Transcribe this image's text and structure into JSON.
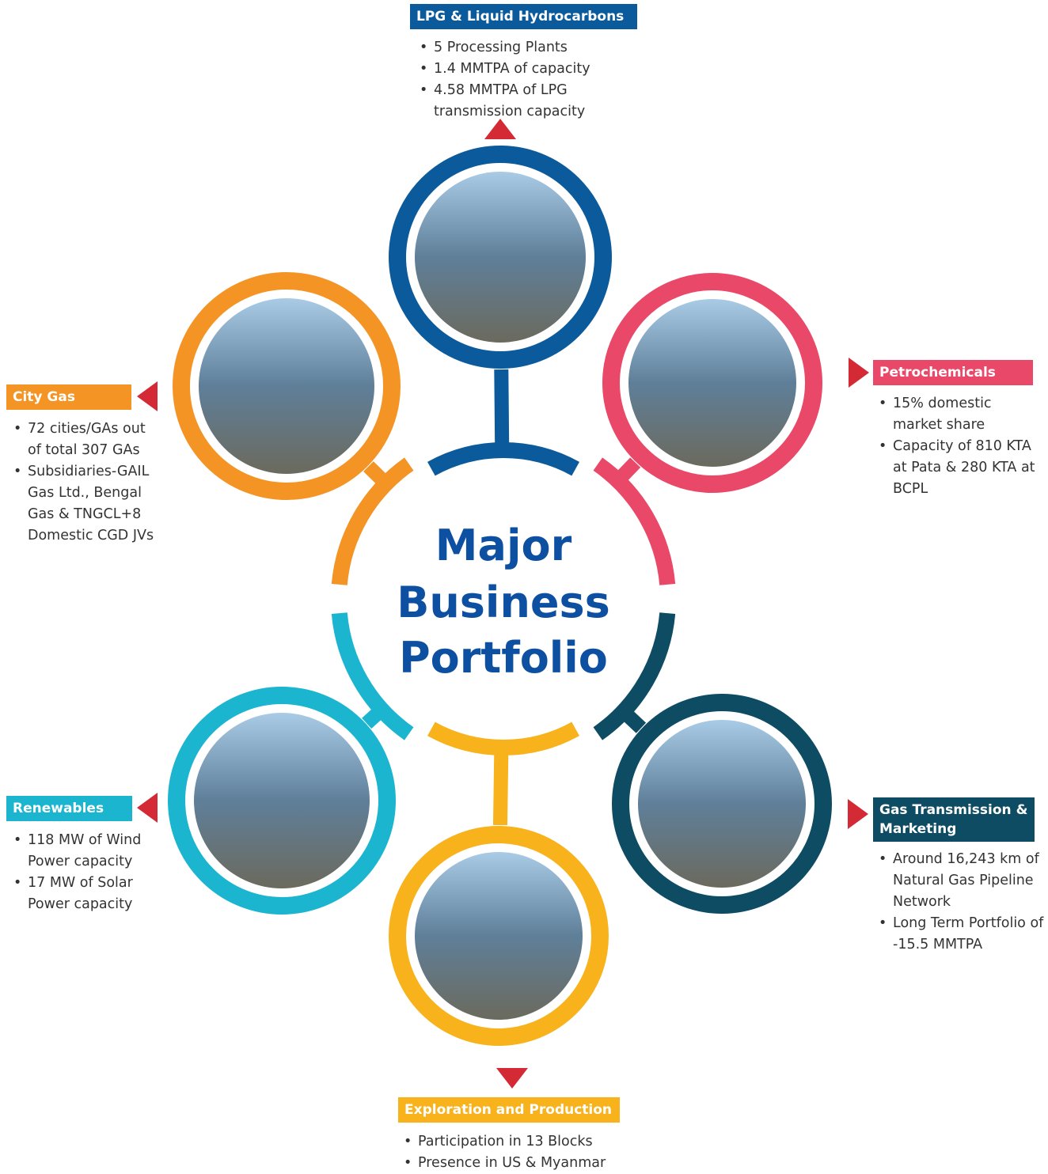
{
  "title": [
    "Major",
    "Business",
    "Portfolio"
  ],
  "segments": [
    {
      "label": "LPG & Liquid Hydrocarbons",
      "color": "#0b5a9c",
      "bullets": [
        "5 Processing Plants",
        "1.4 MMTPA of capacity",
        "4.58 MMTPA of LPG transmission capacity"
      ]
    },
    {
      "label": "Petrochemicals",
      "color": "#ea4868",
      "bullets": [
        "15% domestic market share",
        "Capacity of 810 KTA at Pata & 280 KTA at BCPL"
      ]
    },
    {
      "label": "Gas Transmission & Marketing",
      "color": "#0d4c63",
      "bullets": [
        "Around 16,243 km of Natural Gas Pipeline Network",
        "Long Term Portfolio of -15.5 MMTPA"
      ]
    },
    {
      "label": "Exploration and Production",
      "color": "#f7b21c",
      "bullets": [
        "Participation in 13 Blocks",
        "Presence in US & Myanmar"
      ]
    },
    {
      "label": "Renewables",
      "color": "#1cb5d0",
      "bullets": [
        "118 MW of Wind Power capacity",
        "17 MW of Solar Power capacity"
      ]
    },
    {
      "label": "City Gas",
      "color": "#f39425",
      "bullets": [
        "72 cities/GAs out of total 307 GAs",
        "Subsidiaries-GAIL Gas Ltd., Bengal Gas & TNGCL+8 Domestic CGD JVs"
      ]
    }
  ]
}
